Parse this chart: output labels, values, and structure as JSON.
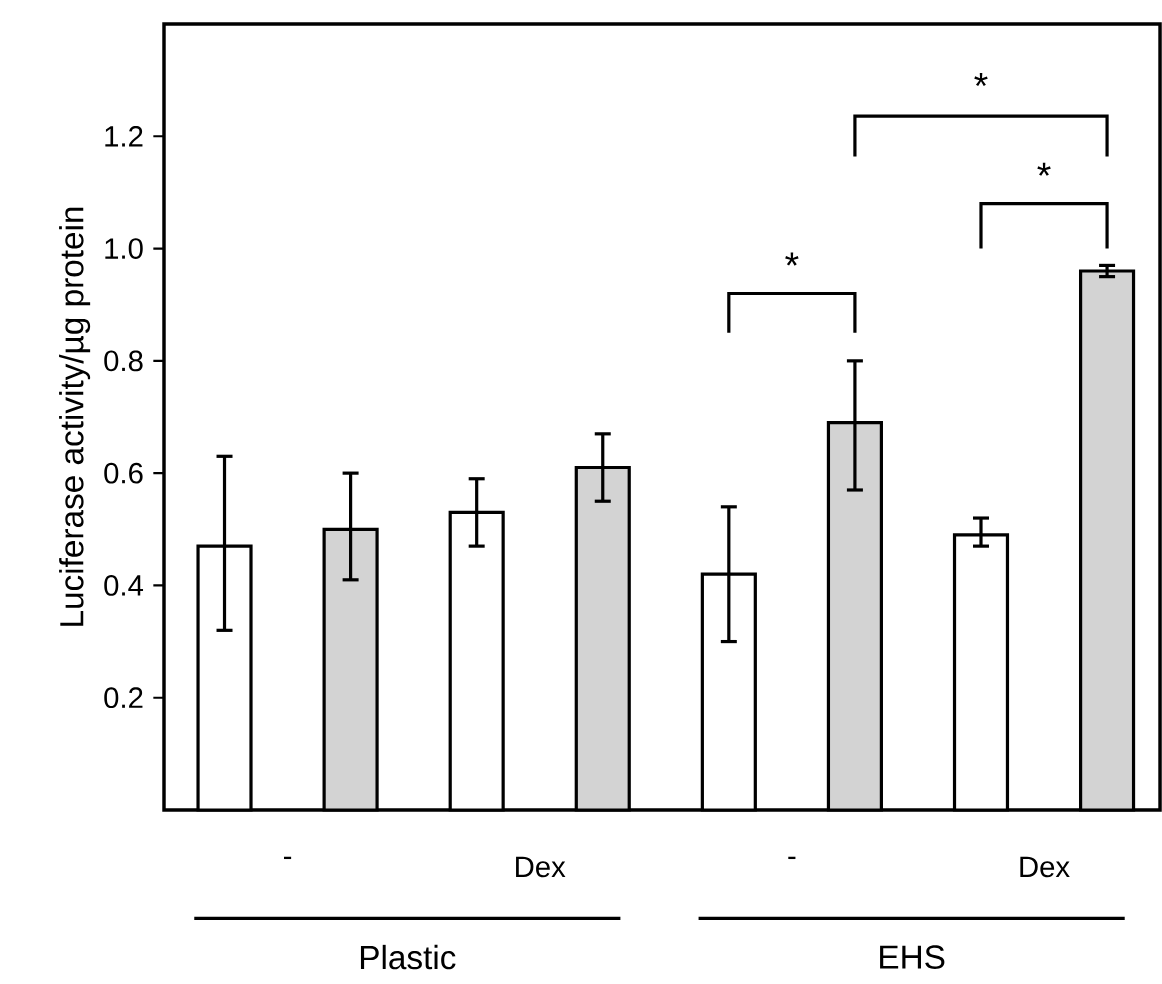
{
  "chart_data": {
    "type": "bar",
    "ylabel": "Luciferase activity/µg protein",
    "categories": [
      "-",
      "Dex",
      "-",
      "Dex"
    ],
    "series": [
      {
        "color": "#ffffff",
        "values": [
          0.47,
          0.53,
          0.42,
          0.49
        ],
        "errors": [
          [
            0.32,
            0.63
          ],
          [
            0.47,
            0.59
          ],
          [
            0.3,
            0.54
          ],
          [
            0.47,
            0.52
          ]
        ]
      },
      {
        "color": "#d3d3d3",
        "values": [
          0.5,
          0.61,
          0.69,
          0.96
        ],
        "errors": [
          [
            0.41,
            0.6
          ],
          [
            0.55,
            0.67
          ],
          [
            0.57,
            0.8
          ],
          [
            0.95,
            0.97
          ]
        ]
      }
    ],
    "ylim": [
      0,
      1.4
    ],
    "yticks": [
      0.2,
      0.4,
      0.6,
      0.8,
      {
        "value": 1,
        "label": "1.0"
      },
      1.2
    ],
    "annotations": [
      "*",
      "*",
      "*",
      "Plastic",
      "EHS"
    ]
  }
}
